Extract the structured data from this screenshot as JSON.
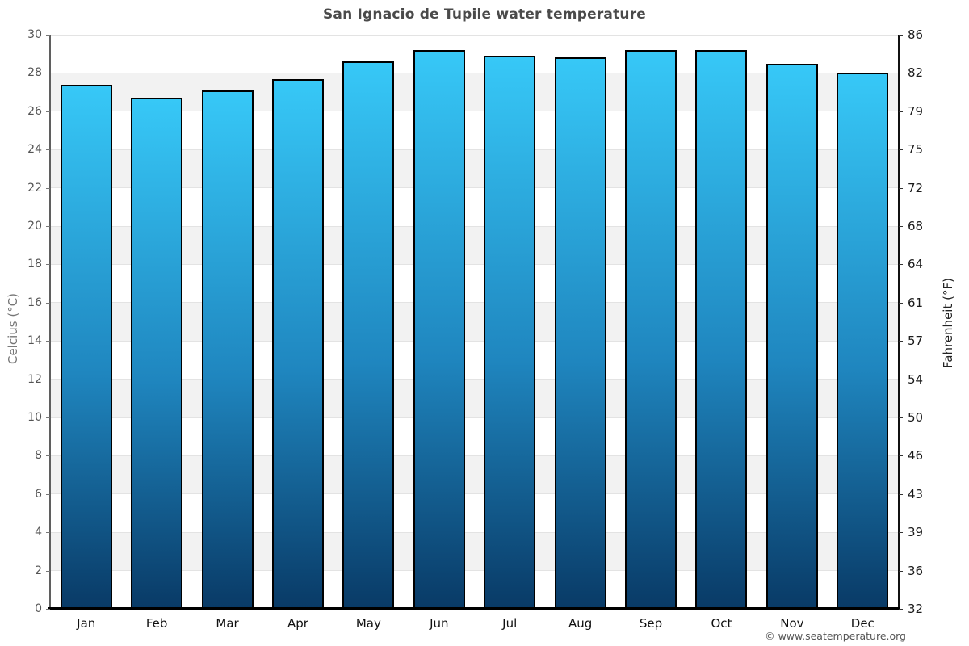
{
  "page": {
    "title": "San Ignacio de Tupile water temperature",
    "copyright": "© www.seatemperature.org"
  },
  "chart_data": {
    "type": "bar",
    "title": "San Ignacio de Tupile water temperature",
    "categories": [
      "Jan",
      "Feb",
      "Mar",
      "Apr",
      "May",
      "Jun",
      "Jul",
      "Aug",
      "Sep",
      "Oct",
      "Nov",
      "Dec"
    ],
    "values": [
      27.4,
      26.7,
      27.1,
      27.7,
      28.6,
      29.2,
      28.9,
      28.8,
      29.2,
      29.2,
      28.5,
      28.0
    ],
    "series_name": "Water temperature",
    "xlabel": "",
    "ylabel_left": "Celcius (°C)",
    "ylabel_right": "Fahrenheit (°F)",
    "ylim": [
      0,
      30
    ],
    "yticks_celsius": [
      0,
      2,
      4,
      6,
      8,
      10,
      12,
      14,
      16,
      18,
      20,
      22,
      24,
      26,
      28,
      30
    ],
    "yticks_fahrenheit": [
      32,
      36,
      39,
      43,
      46,
      50,
      54,
      57,
      61,
      64,
      68,
      72,
      75,
      79,
      82,
      86
    ],
    "legend": "none",
    "grid": "alternating horizontal bands every 2°C",
    "colors": {
      "bar_gradient_top": "#37c8f7",
      "bar_gradient_bottom": "#093a66",
      "bar_border": "#000000",
      "band_gray": "#f2f2f2",
      "gridline": "#e3e3e3",
      "title_text": "#4a4a4a",
      "left_tick_text": "#555555",
      "right_tick_text": "#1a1a1a",
      "copyright_text": "#555555"
    }
  }
}
